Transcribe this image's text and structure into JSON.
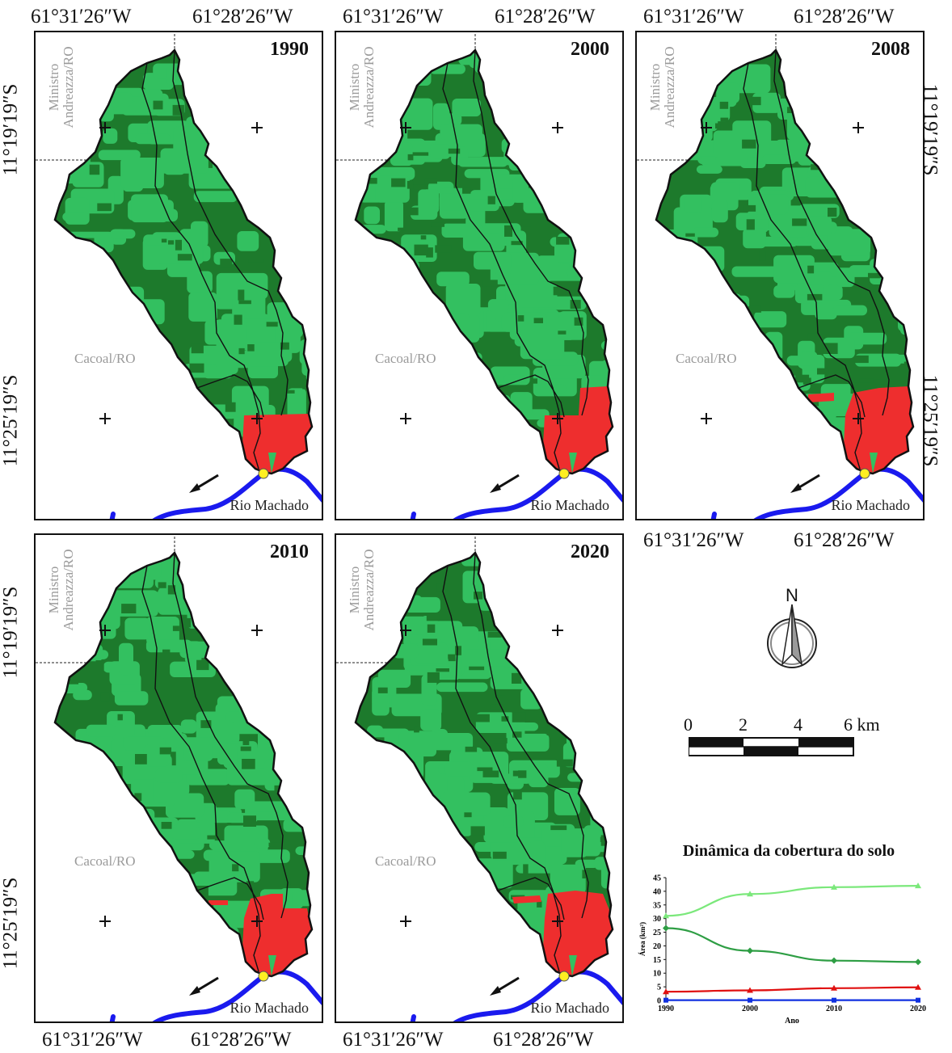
{
  "coordinates": {
    "lon_left": "61°31′26″W",
    "lon_right": "61°28′26″W",
    "lat_top": "11°19′19″S",
    "lat_bottom": "11°25′19″S"
  },
  "panels": [
    {
      "year": "1990"
    },
    {
      "year": "2000"
    },
    {
      "year": "2008"
    },
    {
      "year": "2010"
    },
    {
      "year": "2020"
    }
  ],
  "labels": {
    "municipality_north": "Ministro Andreazza/RO",
    "municipality_south": "Cacoal/RO",
    "river": "Rio Machado"
  },
  "colors": {
    "forest_dark": "#1d7a2c",
    "forest_light": "#33c060",
    "anthropic_red": "#ee2e2e",
    "river_blue": "#1a1aee",
    "outlet_yellow": "#ffee22"
  },
  "north_arrow": {
    "label": "N"
  },
  "scale_bar": {
    "ticks": [
      "0",
      "2",
      "4",
      "6 km"
    ]
  },
  "chart_data": {
    "type": "line",
    "title": "Dinâmica da cobertura do solo",
    "xlabel": "Ano",
    "ylabel": "Área (km²)",
    "x": [
      1990,
      2000,
      2010,
      2020
    ],
    "ylim": [
      0,
      45
    ],
    "yticks": [
      0,
      5,
      10,
      15,
      20,
      25,
      30,
      35,
      40,
      45
    ],
    "series": [
      {
        "values": [
          31,
          39,
          41.5,
          42
        ],
        "color": "#7be87b",
        "marker": "triangle"
      },
      {
        "values": [
          26.5,
          18.2,
          14.6,
          14.1
        ],
        "color": "#2e9e44",
        "marker": "diamond"
      },
      {
        "values": [
          3.2,
          3.7,
          4.5,
          4.8
        ],
        "color": "#e01010",
        "marker": "triangle"
      },
      {
        "values": [
          0.1,
          0.1,
          0.1,
          0.1
        ],
        "color": "#1030e0",
        "marker": "square"
      }
    ]
  }
}
